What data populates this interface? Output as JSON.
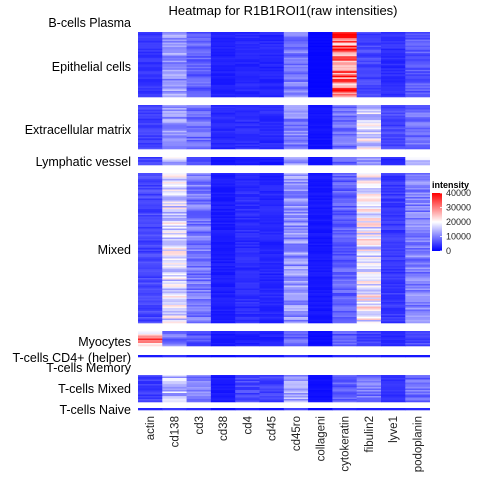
{
  "chart_data": {
    "type": "heatmap",
    "title": "Heatmap for R1B1ROI1(raw intensities)",
    "columns": [
      "actin",
      "cd138",
      "cd3",
      "cd38",
      "cd4",
      "cd45",
      "cd45ro",
      "collageni",
      "cytokeratin",
      "fibulin2",
      "lyve1",
      "podoplanin"
    ],
    "groups": [
      {
        "name": "B-cells Plasma",
        "rows": 0,
        "means": []
      },
      {
        "name": "Epithelial cells",
        "rows": 60,
        "means": [
          4000,
          12000,
          7500,
          2500,
          3000,
          2800,
          9500,
          500,
          33000,
          5500,
          3500,
          7000
        ]
      },
      {
        "name": "Extracellular matrix",
        "rows": 45,
        "means": [
          5000,
          11500,
          8500,
          3000,
          3500,
          3200,
          10500,
          1500,
          9000,
          18000,
          5500,
          8500
        ]
      },
      {
        "name": "Lymphatic vessel",
        "rows": 7,
        "means": [
          5500,
          16000,
          7000,
          1500,
          2500,
          2000,
          11000,
          1000,
          8000,
          12500,
          3000,
          15000
        ]
      },
      {
        "name": "Mixed",
        "rows": 150,
        "means": [
          5500,
          17500,
          9500,
          2200,
          3500,
          3000,
          11500,
          1800,
          7500,
          19000,
          4500,
          10000
        ]
      },
      {
        "name": "Myocytes",
        "rows": 14,
        "means": [
          28000,
          9000,
          6500,
          2000,
          2500,
          2500,
          8000,
          1000,
          7000,
          5000,
          3000,
          6000
        ]
      },
      {
        "name": "T-cells CD4+ (helper)",
        "rows": 1,
        "means": [
          2000,
          3000,
          2500,
          1000,
          1500,
          1500,
          3000,
          500,
          2500,
          2500,
          1500,
          2500
        ]
      },
      {
        "name": "T-cells Memory",
        "rows": 0,
        "means": []
      },
      {
        "name": "T-cells Mixed",
        "rows": 30,
        "means": [
          5000,
          14500,
          9500,
          2000,
          5500,
          5000,
          12500,
          1200,
          7000,
          9000,
          3500,
          8500
        ]
      },
      {
        "name": "T-cells Naive",
        "rows": 1,
        "means": [
          3000,
          4000,
          3500,
          1500,
          2000,
          2000,
          4000,
          800,
          3000,
          3000,
          2000,
          3000
        ]
      }
    ],
    "colorscale": {
      "low": "#0000ff",
      "mid": "#ffffff",
      "high": "#ff0000",
      "midpoint": 20000
    },
    "legend": {
      "title": "intensity",
      "position": "right",
      "range": [
        0,
        40000
      ],
      "ticks": [
        "40000",
        "30000",
        "20000",
        "10000",
        "0"
      ]
    },
    "grid": false
  }
}
